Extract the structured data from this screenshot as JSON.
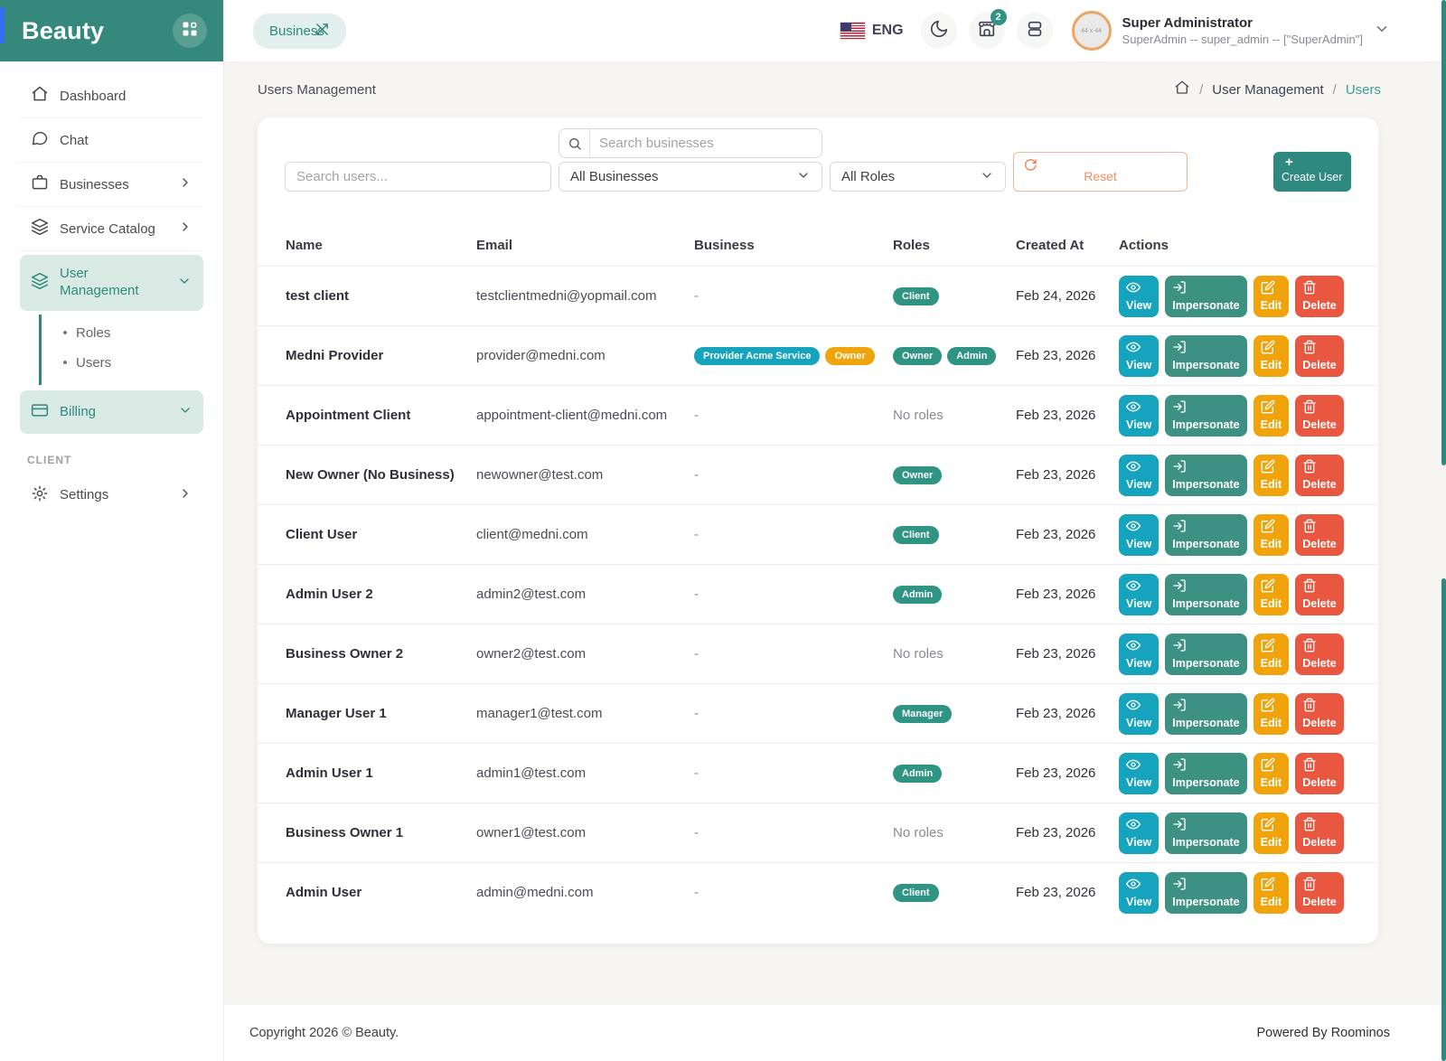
{
  "brand": {
    "name": "Beauty"
  },
  "topbar": {
    "business_pill": "Business",
    "language": "ENG",
    "notification_count": "2",
    "user": {
      "name": "Super Administrator",
      "subtitle": "SuperAdmin -- super_admin -- [\"SuperAdmin\"]",
      "avatar_placeholder": "44 x 44"
    }
  },
  "page": {
    "title": "Users Management",
    "breadcrumb": {
      "level1": "User Management",
      "level2": "Users",
      "separator": "/"
    }
  },
  "filters": {
    "search_users_placeholder": "Search users...",
    "search_businesses_placeholder": "Search businesses",
    "business_select_value": "All Businesses",
    "roles_select_value": "All Roles",
    "reset_label": "Reset",
    "create_plus": "+",
    "create_label": "Create User"
  },
  "sidebar": {
    "items": [
      {
        "label": "Dashboard"
      },
      {
        "label": "Chat"
      },
      {
        "label": "Businesses"
      },
      {
        "label": "Service Catalog"
      },
      {
        "label": "User Management"
      },
      {
        "label": "Billing"
      }
    ],
    "submenu": {
      "roles": "Roles",
      "users": "Users"
    },
    "section_label": "CLIENT",
    "settings_label": "Settings"
  },
  "table": {
    "headers": [
      "Name",
      "Email",
      "Business",
      "Roles",
      "Created At",
      "Actions"
    ],
    "action_labels": {
      "view": "View",
      "impersonate": "Impersonate",
      "edit": "Edit",
      "delete": "Delete"
    },
    "no_roles_text": "No roles",
    "empty_business_text": "-",
    "rows": [
      {
        "name": "test client",
        "email": "testclientmedni@yopmail.com",
        "business_badges": [],
        "role_badges": [
          {
            "label": "Client",
            "color": "teal"
          }
        ],
        "created": "Feb 24, 2026"
      },
      {
        "name": "Medni Provider",
        "email": "provider@medni.com",
        "business_badges": [
          {
            "label": "Provider Acme Service",
            "color": "cyan"
          },
          {
            "label": "Owner",
            "color": "orange"
          }
        ],
        "role_badges": [
          {
            "label": "Owner",
            "color": "teal"
          },
          {
            "label": "Admin",
            "color": "teal"
          }
        ],
        "created": "Feb 23, 2026"
      },
      {
        "name": "Appointment Client",
        "email": "appointment-client@medni.com",
        "business_badges": [],
        "role_badges": [],
        "created": "Feb 23, 2026"
      },
      {
        "name": "New Owner (No Business)",
        "email": "newowner@test.com",
        "business_badges": [],
        "role_badges": [
          {
            "label": "Owner",
            "color": "teal"
          }
        ],
        "created": "Feb 23, 2026"
      },
      {
        "name": "Client User",
        "email": "client@medni.com",
        "business_badges": [],
        "role_badges": [
          {
            "label": "Client",
            "color": "teal"
          }
        ],
        "created": "Feb 23, 2026"
      },
      {
        "name": "Admin User 2",
        "email": "admin2@test.com",
        "business_badges": [],
        "role_badges": [
          {
            "label": "Admin",
            "color": "teal"
          }
        ],
        "created": "Feb 23, 2026"
      },
      {
        "name": "Business Owner 2",
        "email": "owner2@test.com",
        "business_badges": [],
        "role_badges": [],
        "created": "Feb 23, 2026"
      },
      {
        "name": "Manager User 1",
        "email": "manager1@test.com",
        "business_badges": [],
        "role_badges": [
          {
            "label": "Manager",
            "color": "teal"
          }
        ],
        "created": "Feb 23, 2026"
      },
      {
        "name": "Admin User 1",
        "email": "admin1@test.com",
        "business_badges": [],
        "role_badges": [
          {
            "label": "Admin",
            "color": "teal"
          }
        ],
        "created": "Feb 23, 2026"
      },
      {
        "name": "Business Owner 1",
        "email": "owner1@test.com",
        "business_badges": [],
        "role_badges": [],
        "created": "Feb 23, 2026"
      },
      {
        "name": "Admin User",
        "email": "admin@medni.com",
        "business_badges": [],
        "role_badges": [
          {
            "label": "Client",
            "color": "teal"
          }
        ],
        "created": "Feb 23, 2026"
      }
    ]
  },
  "footer": {
    "copyright": "Copyright 2026 © Beauty.",
    "powered": "Powered By Roominos"
  },
  "colors": {
    "primary_teal": "#35897c",
    "badge_teal": "#2f9484",
    "badge_cyan": "#16a3bd",
    "badge_orange": "#f0a30a",
    "delete_red": "#ea5740",
    "active_bg": "#d9eae5"
  }
}
